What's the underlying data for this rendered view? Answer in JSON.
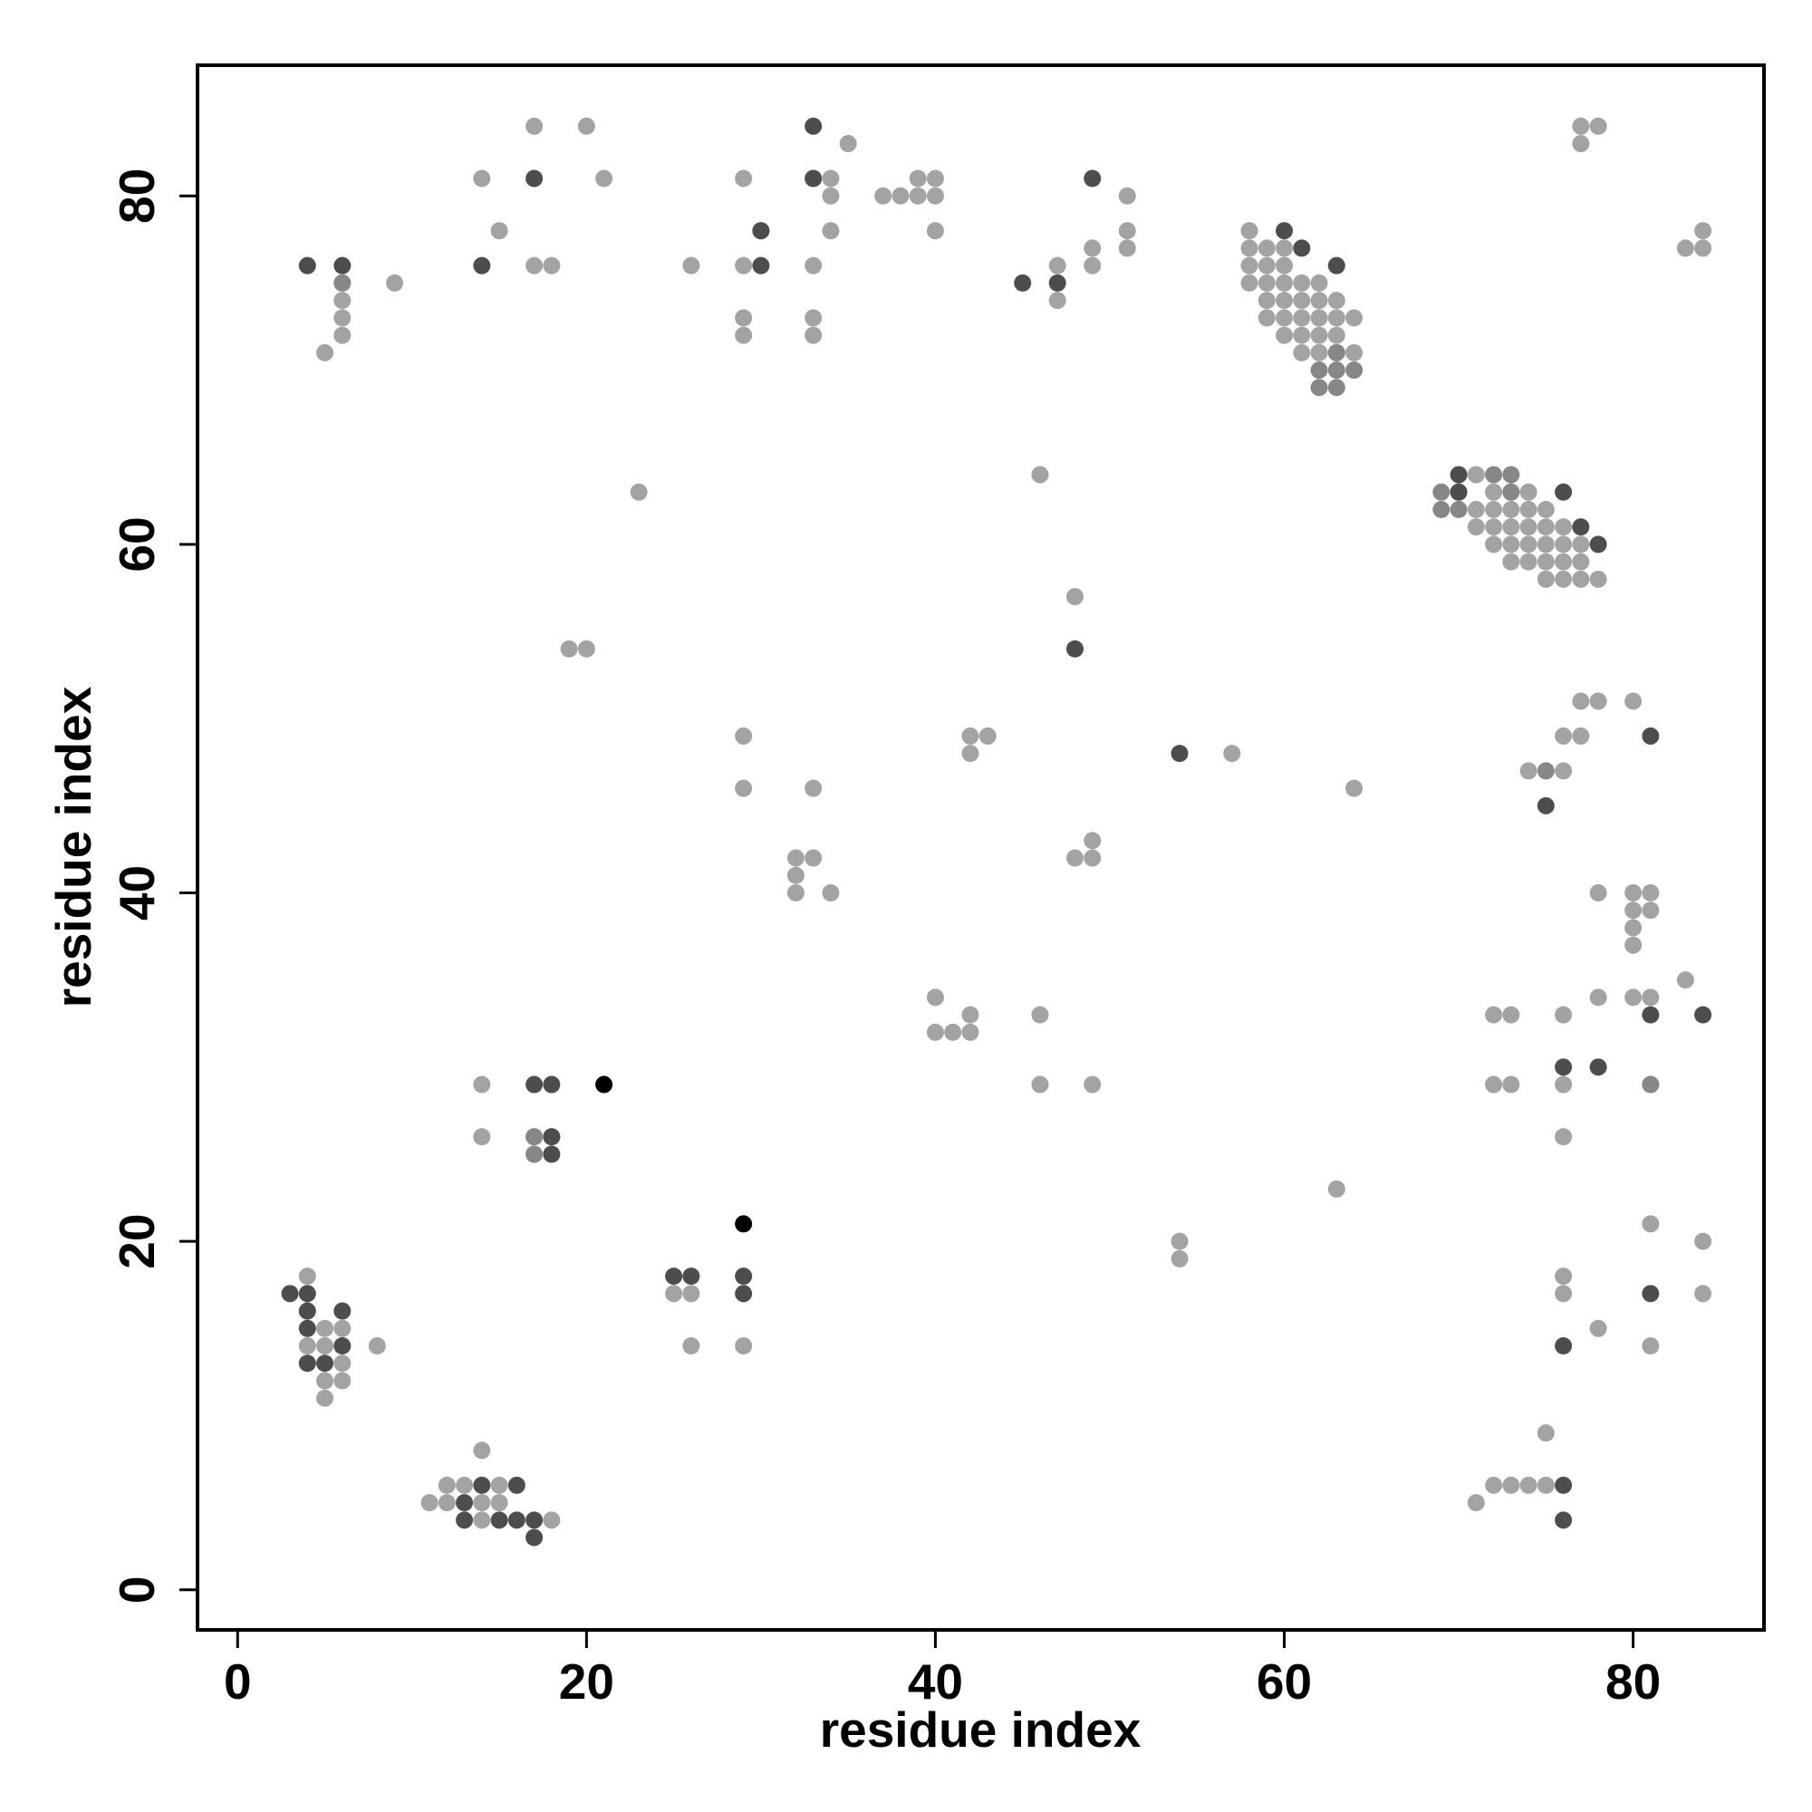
{
  "chart_data": {
    "type": "scatter",
    "title": "",
    "xlabel": "residue index",
    "ylabel": "residue index",
    "xlim": [
      -2.3,
      87.5
    ],
    "ylim": [
      -2.3,
      87.5
    ],
    "xticks": [
      0,
      20,
      40,
      60,
      80
    ],
    "yticks": [
      0,
      20,
      40,
      60,
      80
    ],
    "grid": false,
    "colors": {
      "light": "#a3a3a3",
      "medium": "#878787",
      "dark": "#4d4d4d",
      "black": "#000000"
    },
    "series": [
      {
        "shade": "light",
        "points": [
          [
            4,
            18
          ],
          [
            5,
            15
          ],
          [
            6,
            15
          ],
          [
            4,
            14
          ],
          [
            5,
            14
          ],
          [
            6,
            13
          ],
          [
            5,
            12
          ],
          [
            6,
            12
          ],
          [
            5,
            11
          ],
          [
            8,
            14
          ],
          [
            12,
            6
          ],
          [
            13,
            6
          ],
          [
            15,
            6
          ],
          [
            14,
            8
          ],
          [
            11,
            5
          ],
          [
            12,
            5
          ],
          [
            14,
            5
          ],
          [
            15,
            5
          ],
          [
            14,
            4
          ],
          [
            18,
            4
          ],
          [
            14,
            29
          ],
          [
            14,
            26
          ],
          [
            17,
            26
          ],
          [
            17,
            25
          ],
          [
            25,
            17
          ],
          [
            26,
            17
          ],
          [
            26,
            14
          ],
          [
            29,
            14
          ],
          [
            19,
            54
          ],
          [
            20,
            54
          ],
          [
            23,
            63
          ],
          [
            29,
            49
          ],
          [
            29,
            46
          ],
          [
            33,
            46
          ],
          [
            32,
            42
          ],
          [
            33,
            42
          ],
          [
            32,
            41
          ],
          [
            32,
            40
          ],
          [
            34,
            40
          ],
          [
            42,
            49
          ],
          [
            43,
            49
          ],
          [
            42,
            48
          ],
          [
            40,
            34
          ],
          [
            42,
            33
          ],
          [
            40,
            32
          ],
          [
            41,
            32
          ],
          [
            42,
            32
          ],
          [
            46,
            33
          ],
          [
            46,
            29
          ],
          [
            49,
            29
          ],
          [
            46,
            64
          ],
          [
            48,
            57
          ],
          [
            48,
            42
          ],
          [
            49,
            42
          ],
          [
            49,
            43
          ],
          [
            54,
            20
          ],
          [
            54,
            19
          ],
          [
            57,
            48
          ],
          [
            64,
            46
          ],
          [
            63,
            23
          ],
          [
            14,
            81
          ],
          [
            15,
            78
          ],
          [
            17,
            84
          ],
          [
            20,
            84
          ],
          [
            21,
            81
          ],
          [
            17,
            76
          ],
          [
            18,
            76
          ],
          [
            5,
            71
          ],
          [
            6,
            75
          ],
          [
            6,
            74
          ],
          [
            6,
            73
          ],
          [
            6,
            72
          ],
          [
            9,
            75
          ],
          [
            26,
            76
          ],
          [
            29,
            81
          ],
          [
            29,
            76
          ],
          [
            29,
            73
          ],
          [
            29,
            72
          ],
          [
            33,
            76
          ],
          [
            33,
            73
          ],
          [
            33,
            72
          ],
          [
            34,
            81
          ],
          [
            34,
            80
          ],
          [
            34,
            78
          ],
          [
            35,
            83
          ],
          [
            37,
            80
          ],
          [
            38,
            80
          ],
          [
            39,
            81
          ],
          [
            40,
            81
          ],
          [
            39,
            80
          ],
          [
            40,
            80
          ],
          [
            40,
            78
          ],
          [
            47,
            76
          ],
          [
            47,
            74
          ],
          [
            49,
            77
          ],
          [
            49,
            76
          ],
          [
            51,
            80
          ],
          [
            51,
            78
          ],
          [
            51,
            77
          ],
          [
            58,
            78
          ],
          [
            58,
            77
          ],
          [
            59,
            77
          ],
          [
            60,
            77
          ],
          [
            58,
            76
          ],
          [
            59,
            76
          ],
          [
            60,
            76
          ],
          [
            58,
            75
          ],
          [
            59,
            75
          ],
          [
            60,
            75
          ],
          [
            61,
            75
          ],
          [
            62,
            75
          ],
          [
            59,
            74
          ],
          [
            60,
            74
          ],
          [
            61,
            74
          ],
          [
            62,
            74
          ],
          [
            63,
            74
          ],
          [
            59,
            73
          ],
          [
            60,
            73
          ],
          [
            61,
            73
          ],
          [
            62,
            73
          ],
          [
            63,
            73
          ],
          [
            64,
            73
          ],
          [
            60,
            72
          ],
          [
            61,
            72
          ],
          [
            62,
            72
          ],
          [
            63,
            72
          ],
          [
            61,
            71
          ],
          [
            62,
            71
          ],
          [
            63,
            71
          ],
          [
            64,
            71
          ],
          [
            70,
            63
          ],
          [
            71,
            64
          ],
          [
            72,
            63
          ],
          [
            73,
            63
          ],
          [
            74,
            63
          ],
          [
            71,
            62
          ],
          [
            72,
            62
          ],
          [
            73,
            62
          ],
          [
            74,
            62
          ],
          [
            75,
            62
          ],
          [
            71,
            61
          ],
          [
            72,
            61
          ],
          [
            73,
            61
          ],
          [
            74,
            61
          ],
          [
            75,
            61
          ],
          [
            76,
            61
          ],
          [
            72,
            60
          ],
          [
            73,
            60
          ],
          [
            74,
            60
          ],
          [
            75,
            60
          ],
          [
            76,
            60
          ],
          [
            77,
            60
          ],
          [
            73,
            59
          ],
          [
            74,
            59
          ],
          [
            75,
            59
          ],
          [
            76,
            59
          ],
          [
            77,
            59
          ],
          [
            75,
            58
          ],
          [
            76,
            58
          ],
          [
            77,
            58
          ],
          [
            78,
            58
          ],
          [
            77,
            51
          ],
          [
            78,
            51
          ],
          [
            80,
            51
          ],
          [
            76,
            49
          ],
          [
            77,
            49
          ],
          [
            74,
            47
          ],
          [
            76,
            47
          ],
          [
            78,
            40
          ],
          [
            80,
            40
          ],
          [
            81,
            40
          ],
          [
            80,
            39
          ],
          [
            81,
            39
          ],
          [
            80,
            38
          ],
          [
            80,
            37
          ],
          [
            83,
            35
          ],
          [
            78,
            34
          ],
          [
            80,
            34
          ],
          [
            81,
            34
          ],
          [
            72,
            33
          ],
          [
            73,
            33
          ],
          [
            76,
            33
          ],
          [
            72,
            29
          ],
          [
            73,
            29
          ],
          [
            76,
            29
          ],
          [
            76,
            26
          ],
          [
            81,
            29
          ],
          [
            81,
            21
          ],
          [
            84,
            20
          ],
          [
            84,
            17
          ],
          [
            76,
            18
          ],
          [
            76,
            17
          ],
          [
            78,
            15
          ],
          [
            81,
            14
          ],
          [
            75,
            9
          ],
          [
            71,
            5
          ],
          [
            72,
            6
          ],
          [
            73,
            6
          ],
          [
            74,
            6
          ],
          [
            75,
            6
          ],
          [
            77,
            84
          ],
          [
            78,
            84
          ],
          [
            77,
            83
          ],
          [
            83,
            77
          ],
          [
            84,
            77
          ],
          [
            84,
            78
          ]
        ]
      },
      {
        "shade": "medium",
        "points": [
          [
            6,
            75
          ],
          [
            62,
            69
          ],
          [
            63,
            69
          ],
          [
            62,
            70
          ],
          [
            63,
            70
          ],
          [
            64,
            70
          ],
          [
            63,
            71
          ],
          [
            69,
            63
          ],
          [
            69,
            62
          ],
          [
            70,
            62
          ],
          [
            72,
            64
          ],
          [
            73,
            64
          ],
          [
            73,
            63
          ],
          [
            75,
            47
          ],
          [
            81,
            29
          ],
          [
            17,
            26
          ],
          [
            18,
            26
          ],
          [
            17,
            25
          ],
          [
            33,
            81
          ],
          [
            30,
            78
          ]
        ]
      },
      {
        "shade": "dark",
        "points": [
          [
            3,
            17
          ],
          [
            4,
            17
          ],
          [
            4,
            16
          ],
          [
            6,
            16
          ],
          [
            4,
            15
          ],
          [
            6,
            14
          ],
          [
            4,
            13
          ],
          [
            5,
            13
          ],
          [
            14,
            6
          ],
          [
            16,
            6
          ],
          [
            13,
            5
          ],
          [
            13,
            4
          ],
          [
            15,
            4
          ],
          [
            16,
            4
          ],
          [
            17,
            4
          ],
          [
            17,
            3
          ],
          [
            17,
            29
          ],
          [
            18,
            29
          ],
          [
            18,
            26
          ],
          [
            18,
            25
          ],
          [
            25,
            18
          ],
          [
            26,
            18
          ],
          [
            29,
            18
          ],
          [
            29,
            17
          ],
          [
            4,
            76
          ],
          [
            6,
            76
          ],
          [
            14,
            76
          ],
          [
            17,
            81
          ],
          [
            30,
            76
          ],
          [
            33,
            84
          ],
          [
            33,
            81
          ],
          [
            30,
            78
          ],
          [
            45,
            75
          ],
          [
            47,
            75
          ],
          [
            49,
            81
          ],
          [
            60,
            78
          ],
          [
            61,
            77
          ],
          [
            63,
            76
          ],
          [
            70,
            64
          ],
          [
            70,
            63
          ],
          [
            76,
            63
          ],
          [
            77,
            61
          ],
          [
            78,
            60
          ],
          [
            48,
            54
          ],
          [
            54,
            48
          ],
          [
            75,
            45
          ],
          [
            81,
            49
          ],
          [
            81,
            33
          ],
          [
            84,
            33
          ],
          [
            76,
            30
          ],
          [
            78,
            30
          ],
          [
            81,
            17
          ],
          [
            76,
            14
          ],
          [
            76,
            6
          ],
          [
            76,
            4
          ]
        ]
      },
      {
        "shade": "black",
        "points": [
          [
            21,
            29
          ],
          [
            29,
            21
          ]
        ]
      }
    ]
  }
}
